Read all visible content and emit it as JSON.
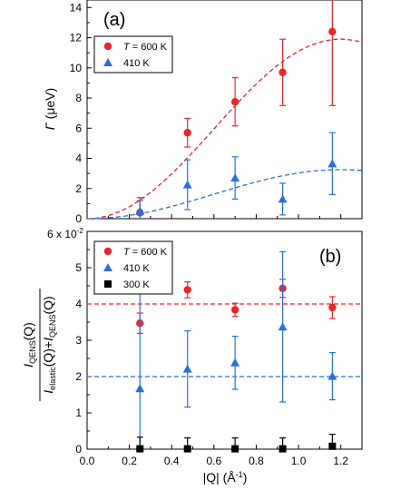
{
  "colors": {
    "red": "#e8262b",
    "blue": "#2a6fd8",
    "black": "#000000"
  },
  "chart_data": [
    {
      "type": "scatter",
      "panel_label": "(a)",
      "xlabel": "",
      "ylabel_symbol": "Γ",
      "ylabel_unit": " (μeV)",
      "xlim": [
        0,
        1.3
      ],
      "ylim": [
        0,
        14.5
      ],
      "yticks": [
        0,
        2,
        4,
        6,
        8,
        10,
        12,
        14
      ],
      "xticks": [
        0.0,
        0.2,
        0.4,
        0.6,
        0.8,
        1.0,
        1.2
      ],
      "legend_position": "top-left",
      "series": [
        {
          "name_prefix": "T",
          "name": " = 600 K",
          "marker": "circle",
          "color": "#e8262b",
          "x": [
            0.25,
            0.475,
            0.7,
            0.925,
            1.16
          ],
          "y": [
            0.4,
            5.7,
            7.75,
            9.7,
            12.4
          ],
          "err": [
            0.8,
            0.95,
            1.6,
            2.2,
            4.9
          ],
          "fit": {
            "type": "dashed",
            "amplitude": 11.9,
            "period_x": 1.2
          }
        },
        {
          "name": "410 K",
          "marker": "triangle",
          "color": "#2a6fd8",
          "x": [
            0.25,
            0.475,
            0.7,
            0.925,
            1.16
          ],
          "y": [
            0.5,
            2.25,
            2.7,
            1.3,
            3.65
          ],
          "err": [
            0.9,
            1.65,
            1.4,
            1.05,
            2.05
          ],
          "fit": {
            "type": "dashed",
            "amplitude": 3.25,
            "period_x": 1.2
          }
        }
      ]
    },
    {
      "type": "scatter",
      "panel_label": "(b)",
      "xlabel_main": "|Q| (Å",
      "xlabel_sup": "-1",
      "xlabel_end": ")",
      "ylabel": "I_QENS(Q) / (I_elastic(Q)+I_QENS(Q))",
      "y_scale_label_main": "6 x 10",
      "y_scale_label_sup": "-2",
      "xlim": [
        0,
        1.3
      ],
      "ylim": [
        0,
        6.0
      ],
      "yticks": [
        0,
        1,
        2,
        3,
        4,
        5
      ],
      "xticks": [
        "0.0",
        "0.2",
        "0.4",
        "0.6",
        "0.8",
        "1.0",
        "1.2"
      ],
      "legend_position": "top-left",
      "series": [
        {
          "name_prefix": "T",
          "name": " = 600 K",
          "marker": "circle",
          "color": "#e8262b",
          "x": [
            0.25,
            0.475,
            0.7,
            0.925,
            1.16
          ],
          "y": [
            3.47,
            4.39,
            3.84,
            4.43,
            3.9
          ],
          "err": [
            0.28,
            0.22,
            0.18,
            0.25,
            0.3
          ],
          "reference_line": 4.0
        },
        {
          "name": "410 K",
          "marker": "triangle",
          "color": "#2a6fd8",
          "x": [
            0.25,
            0.475,
            0.7,
            0.925,
            1.16
          ],
          "y": [
            1.67,
            2.21,
            2.38,
            3.37,
            2.01
          ],
          "err": [
            2.62,
            1.05,
            0.73,
            2.07,
            0.65
          ],
          "reference_line": 2.0
        },
        {
          "name": "300 K",
          "marker": "square",
          "color": "#000000",
          "x": [
            0.25,
            0.475,
            0.7,
            0.925,
            1.16
          ],
          "y": [
            0.01,
            0.01,
            0.01,
            0.01,
            0.08
          ],
          "err": [
            0.32,
            0.3,
            0.3,
            0.3,
            0.33
          ]
        }
      ]
    }
  ]
}
